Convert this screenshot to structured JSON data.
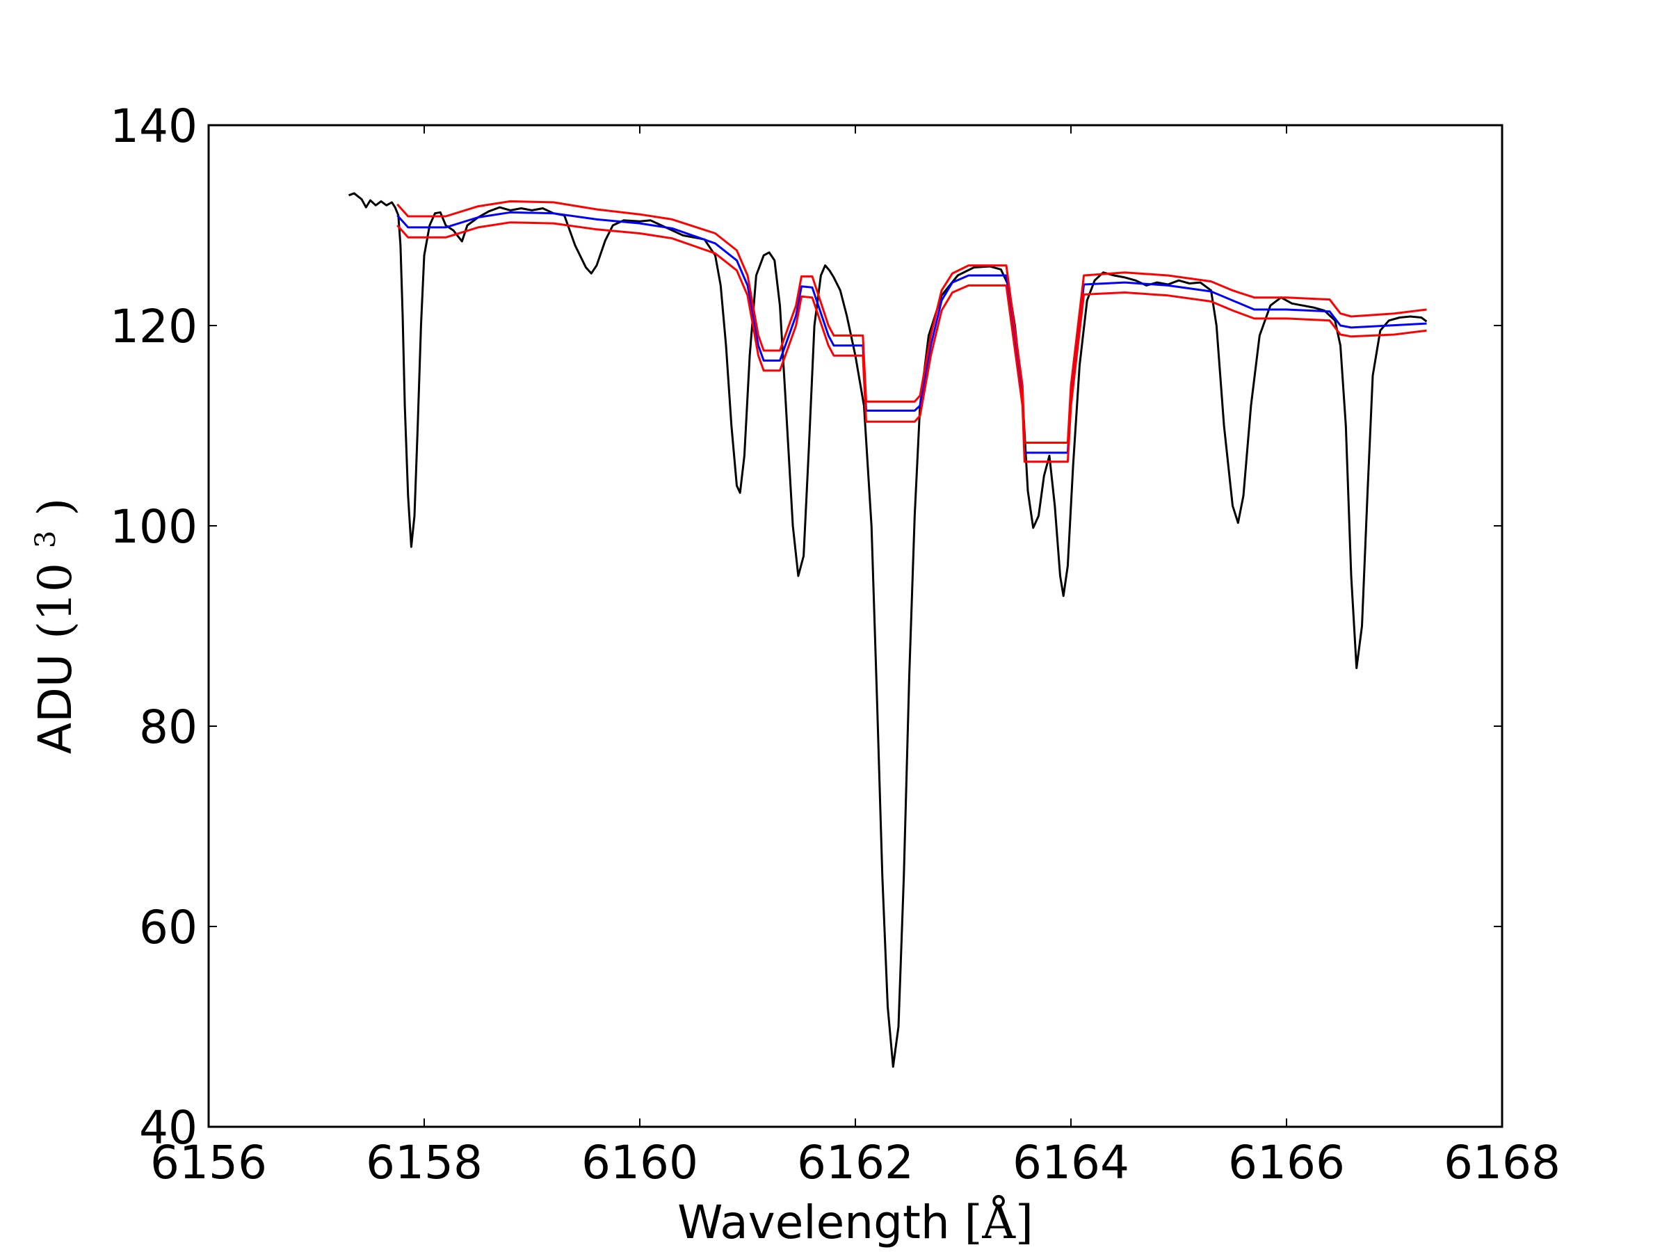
{
  "chart_data": {
    "type": "line",
    "xlabel_text": "Wavelength",
    "xlabel_unit": "[Å]",
    "ylabel_text": "ADU",
    "ylabel_unit_base": "(10",
    "ylabel_unit_exp": "3",
    "ylabel_unit_close": ")",
    "xlim": [
      6156,
      6168
    ],
    "ylim": [
      40,
      140
    ],
    "x_ticks": [
      6156,
      6158,
      6160,
      6162,
      6164,
      6166,
      6168
    ],
    "y_ticks": [
      40,
      60,
      80,
      100,
      120,
      140
    ],
    "grid": false,
    "colors": {
      "observed": "#000000",
      "model": "#0000ff",
      "bounds": "#ff0000"
    },
    "series": [
      {
        "role": "observed",
        "color": "#000000",
        "points": [
          [
            6157.3,
            133.0
          ],
          [
            6157.35,
            133.2
          ],
          [
            6157.42,
            132.6
          ],
          [
            6157.46,
            131.8
          ],
          [
            6157.5,
            132.5
          ],
          [
            6157.55,
            132.0
          ],
          [
            6157.6,
            132.4
          ],
          [
            6157.65,
            132.0
          ],
          [
            6157.7,
            132.3
          ],
          [
            6157.73,
            131.8
          ],
          [
            6157.76,
            131.0
          ],
          [
            6157.78,
            128.0
          ],
          [
            6157.8,
            121.0
          ],
          [
            6157.82,
            112.0
          ],
          [
            6157.85,
            103.0
          ],
          [
            6157.88,
            97.9
          ],
          [
            6157.91,
            101.0
          ],
          [
            6157.94,
            110.0
          ],
          [
            6157.97,
            120.0
          ],
          [
            6158.0,
            127.0
          ],
          [
            6158.05,
            130.0
          ],
          [
            6158.1,
            131.2
          ],
          [
            6158.15,
            131.3
          ],
          [
            6158.2,
            130.0
          ],
          [
            6158.27,
            129.5
          ],
          [
            6158.35,
            128.4
          ],
          [
            6158.4,
            130.0
          ],
          [
            6158.5,
            130.8
          ],
          [
            6158.6,
            131.4
          ],
          [
            6158.7,
            131.8
          ],
          [
            6158.8,
            131.5
          ],
          [
            6158.9,
            131.7
          ],
          [
            6159.0,
            131.5
          ],
          [
            6159.1,
            131.7
          ],
          [
            6159.2,
            131.2
          ],
          [
            6159.3,
            131.0
          ],
          [
            6159.4,
            128.0
          ],
          [
            6159.5,
            125.8
          ],
          [
            6159.55,
            125.2
          ],
          [
            6159.6,
            126.0
          ],
          [
            6159.68,
            128.5
          ],
          [
            6159.75,
            130.0
          ],
          [
            6159.85,
            130.5
          ],
          [
            6160.0,
            130.4
          ],
          [
            6160.1,
            130.5
          ],
          [
            6160.2,
            130.0
          ],
          [
            6160.3,
            129.5
          ],
          [
            6160.4,
            129.0
          ],
          [
            6160.5,
            128.8
          ],
          [
            6160.6,
            128.6
          ],
          [
            6160.65,
            127.8
          ],
          [
            6160.7,
            127.0
          ],
          [
            6160.75,
            124.0
          ],
          [
            6160.8,
            118.0
          ],
          [
            6160.85,
            110.0
          ],
          [
            6160.9,
            104.0
          ],
          [
            6160.93,
            103.3
          ],
          [
            6160.97,
            107.0
          ],
          [
            6161.02,
            117.0
          ],
          [
            6161.08,
            125.0
          ],
          [
            6161.15,
            127.0
          ],
          [
            6161.2,
            127.3
          ],
          [
            6161.25,
            126.5
          ],
          [
            6161.3,
            122.0
          ],
          [
            6161.35,
            113.0
          ],
          [
            6161.42,
            100.0
          ],
          [
            6161.47,
            95.0
          ],
          [
            6161.52,
            97.0
          ],
          [
            6161.57,
            108.0
          ],
          [
            6161.62,
            120.0
          ],
          [
            6161.68,
            125.0
          ],
          [
            6161.72,
            126.0
          ],
          [
            6161.76,
            125.5
          ],
          [
            6161.8,
            124.8
          ],
          [
            6161.86,
            123.5
          ],
          [
            6161.92,
            121.0
          ],
          [
            6162.0,
            117.0
          ],
          [
            6162.08,
            112.0
          ],
          [
            6162.15,
            100.0
          ],
          [
            6162.2,
            83.0
          ],
          [
            6162.25,
            65.0
          ],
          [
            6162.3,
            52.0
          ],
          [
            6162.35,
            46.0
          ],
          [
            6162.4,
            50.0
          ],
          [
            6162.45,
            65.0
          ],
          [
            6162.5,
            85.0
          ],
          [
            6162.55,
            101.0
          ],
          [
            6162.6,
            112.0
          ],
          [
            6162.68,
            119.0
          ],
          [
            6162.8,
            123.0
          ],
          [
            6162.95,
            125.0
          ],
          [
            6163.1,
            125.8
          ],
          [
            6163.25,
            125.9
          ],
          [
            6163.35,
            125.6
          ],
          [
            6163.42,
            124.0
          ],
          [
            6163.48,
            120.0
          ],
          [
            6163.55,
            113.0
          ],
          [
            6163.6,
            103.5
          ],
          [
            6163.65,
            99.8
          ],
          [
            6163.7,
            101.0
          ],
          [
            6163.75,
            105.0
          ],
          [
            6163.8,
            107.0
          ],
          [
            6163.85,
            102.0
          ],
          [
            6163.9,
            95.0
          ],
          [
            6163.93,
            93.0
          ],
          [
            6163.97,
            96.0
          ],
          [
            6164.02,
            106.0
          ],
          [
            6164.08,
            116.0
          ],
          [
            6164.15,
            122.5
          ],
          [
            6164.22,
            124.5
          ],
          [
            6164.3,
            125.3
          ],
          [
            6164.4,
            125.0
          ],
          [
            6164.5,
            124.8
          ],
          [
            6164.6,
            124.5
          ],
          [
            6164.7,
            124.0
          ],
          [
            6164.8,
            124.3
          ],
          [
            6164.9,
            124.1
          ],
          [
            6165.0,
            124.5
          ],
          [
            6165.1,
            124.2
          ],
          [
            6165.2,
            124.3
          ],
          [
            6165.3,
            123.5
          ],
          [
            6165.35,
            120.0
          ],
          [
            6165.42,
            110.0
          ],
          [
            6165.5,
            102.0
          ],
          [
            6165.55,
            100.3
          ],
          [
            6165.6,
            103.0
          ],
          [
            6165.67,
            112.0
          ],
          [
            6165.75,
            119.0
          ],
          [
            6165.85,
            122.0
          ],
          [
            6165.95,
            122.8
          ],
          [
            6166.05,
            122.2
          ],
          [
            6166.15,
            122.0
          ],
          [
            6166.25,
            121.8
          ],
          [
            6166.35,
            121.5
          ],
          [
            6166.45,
            120.5
          ],
          [
            6166.5,
            118.0
          ],
          [
            6166.55,
            110.0
          ],
          [
            6166.6,
            95.0
          ],
          [
            6166.65,
            85.8
          ],
          [
            6166.7,
            90.0
          ],
          [
            6166.75,
            103.0
          ],
          [
            6166.8,
            115.0
          ],
          [
            6166.87,
            119.5
          ],
          [
            6166.95,
            120.5
          ],
          [
            6167.05,
            120.8
          ],
          [
            6167.15,
            120.9
          ],
          [
            6167.25,
            120.8
          ],
          [
            6167.3,
            120.4
          ]
        ]
      },
      {
        "role": "model",
        "color": "#0000ff",
        "points": [
          [
            6157.75,
            131.0
          ],
          [
            6157.85,
            129.8
          ],
          [
            6158.2,
            129.8
          ],
          [
            6158.5,
            130.8
          ],
          [
            6158.8,
            131.3
          ],
          [
            6159.2,
            131.2
          ],
          [
            6159.6,
            130.6
          ],
          [
            6160.0,
            130.2
          ],
          [
            6160.3,
            129.7
          ],
          [
            6160.7,
            128.2
          ],
          [
            6160.9,
            126.5
          ],
          [
            6161.0,
            124.0
          ],
          [
            6161.1,
            118.0
          ],
          [
            6161.15,
            116.5
          ],
          [
            6161.3,
            116.5
          ],
          [
            6161.45,
            121.0
          ],
          [
            6161.5,
            123.9
          ],
          [
            6161.6,
            123.8
          ],
          [
            6161.75,
            119.0
          ],
          [
            6161.8,
            118.0
          ],
          [
            6162.07,
            118.0
          ],
          [
            6162.1,
            111.5
          ],
          [
            6162.55,
            111.5
          ],
          [
            6162.6,
            112.0
          ],
          [
            6162.7,
            118.0
          ],
          [
            6162.8,
            122.5
          ],
          [
            6162.9,
            124.3
          ],
          [
            6163.05,
            125.0
          ],
          [
            6163.4,
            125.0
          ],
          [
            6163.55,
            113.0
          ],
          [
            6163.57,
            107.3
          ],
          [
            6163.97,
            107.3
          ],
          [
            6164.0,
            113.0
          ],
          [
            6164.12,
            124.1
          ],
          [
            6164.5,
            124.3
          ],
          [
            6164.9,
            124.0
          ],
          [
            6165.3,
            123.4
          ],
          [
            6165.5,
            122.5
          ],
          [
            6165.7,
            121.6
          ],
          [
            6166.0,
            121.6
          ],
          [
            6166.4,
            121.4
          ],
          [
            6166.5,
            120.0
          ],
          [
            6166.6,
            119.8
          ],
          [
            6167.3,
            120.2
          ]
        ]
      },
      {
        "role": "upper-bound",
        "color": "#ff0000",
        "points": [
          [
            6157.75,
            132.1
          ],
          [
            6157.85,
            130.9
          ],
          [
            6158.2,
            130.9
          ],
          [
            6158.5,
            131.9
          ],
          [
            6158.8,
            132.4
          ],
          [
            6159.2,
            132.3
          ],
          [
            6159.6,
            131.6
          ],
          [
            6160.0,
            131.1
          ],
          [
            6160.3,
            130.6
          ],
          [
            6160.7,
            129.2
          ],
          [
            6160.9,
            127.5
          ],
          [
            6161.0,
            125.0
          ],
          [
            6161.1,
            119.0
          ],
          [
            6161.15,
            117.5
          ],
          [
            6161.3,
            117.5
          ],
          [
            6161.45,
            122.0
          ],
          [
            6161.5,
            124.9
          ],
          [
            6161.6,
            124.9
          ],
          [
            6161.75,
            120.0
          ],
          [
            6161.8,
            119.0
          ],
          [
            6162.07,
            119.0
          ],
          [
            6162.1,
            112.4
          ],
          [
            6162.55,
            112.4
          ],
          [
            6162.6,
            113.0
          ],
          [
            6162.7,
            119.0
          ],
          [
            6162.8,
            123.5
          ],
          [
            6162.9,
            125.2
          ],
          [
            6163.05,
            126.0
          ],
          [
            6163.4,
            126.0
          ],
          [
            6163.55,
            114.0
          ],
          [
            6163.57,
            108.3
          ],
          [
            6163.97,
            108.3
          ],
          [
            6164.0,
            114.0
          ],
          [
            6164.12,
            125.0
          ],
          [
            6164.5,
            125.3
          ],
          [
            6164.9,
            125.0
          ],
          [
            6165.3,
            124.4
          ],
          [
            6165.5,
            123.5
          ],
          [
            6165.7,
            122.8
          ],
          [
            6166.0,
            122.8
          ],
          [
            6166.4,
            122.6
          ],
          [
            6166.5,
            121.2
          ],
          [
            6166.6,
            120.9
          ],
          [
            6167.0,
            121.2
          ],
          [
            6167.3,
            121.6
          ]
        ]
      },
      {
        "role": "lower-bound",
        "color": "#ff0000",
        "points": [
          [
            6157.75,
            130.0
          ],
          [
            6157.85,
            128.8
          ],
          [
            6158.2,
            128.8
          ],
          [
            6158.5,
            129.8
          ],
          [
            6158.8,
            130.3
          ],
          [
            6159.2,
            130.2
          ],
          [
            6159.6,
            129.6
          ],
          [
            6160.0,
            129.2
          ],
          [
            6160.3,
            128.7
          ],
          [
            6160.7,
            127.2
          ],
          [
            6160.9,
            125.5
          ],
          [
            6161.0,
            123.0
          ],
          [
            6161.1,
            117.0
          ],
          [
            6161.15,
            115.5
          ],
          [
            6161.3,
            115.5
          ],
          [
            6161.45,
            120.0
          ],
          [
            6161.5,
            122.9
          ],
          [
            6161.6,
            122.8
          ],
          [
            6161.75,
            118.0
          ],
          [
            6161.8,
            117.0
          ],
          [
            6162.07,
            117.0
          ],
          [
            6162.1,
            110.4
          ],
          [
            6162.55,
            110.4
          ],
          [
            6162.6,
            111.0
          ],
          [
            6162.7,
            117.0
          ],
          [
            6162.8,
            121.5
          ],
          [
            6162.9,
            123.3
          ],
          [
            6163.05,
            124.0
          ],
          [
            6163.4,
            124.0
          ],
          [
            6163.55,
            112.0
          ],
          [
            6163.57,
            106.4
          ],
          [
            6163.97,
            106.4
          ],
          [
            6164.0,
            112.0
          ],
          [
            6164.12,
            123.1
          ],
          [
            6164.5,
            123.3
          ],
          [
            6164.9,
            123.0
          ],
          [
            6165.3,
            122.4
          ],
          [
            6165.5,
            121.5
          ],
          [
            6165.7,
            120.7
          ],
          [
            6166.0,
            120.7
          ],
          [
            6166.4,
            120.5
          ],
          [
            6166.5,
            119.1
          ],
          [
            6166.6,
            118.9
          ],
          [
            6167.0,
            119.1
          ],
          [
            6167.3,
            119.5
          ]
        ]
      }
    ]
  }
}
